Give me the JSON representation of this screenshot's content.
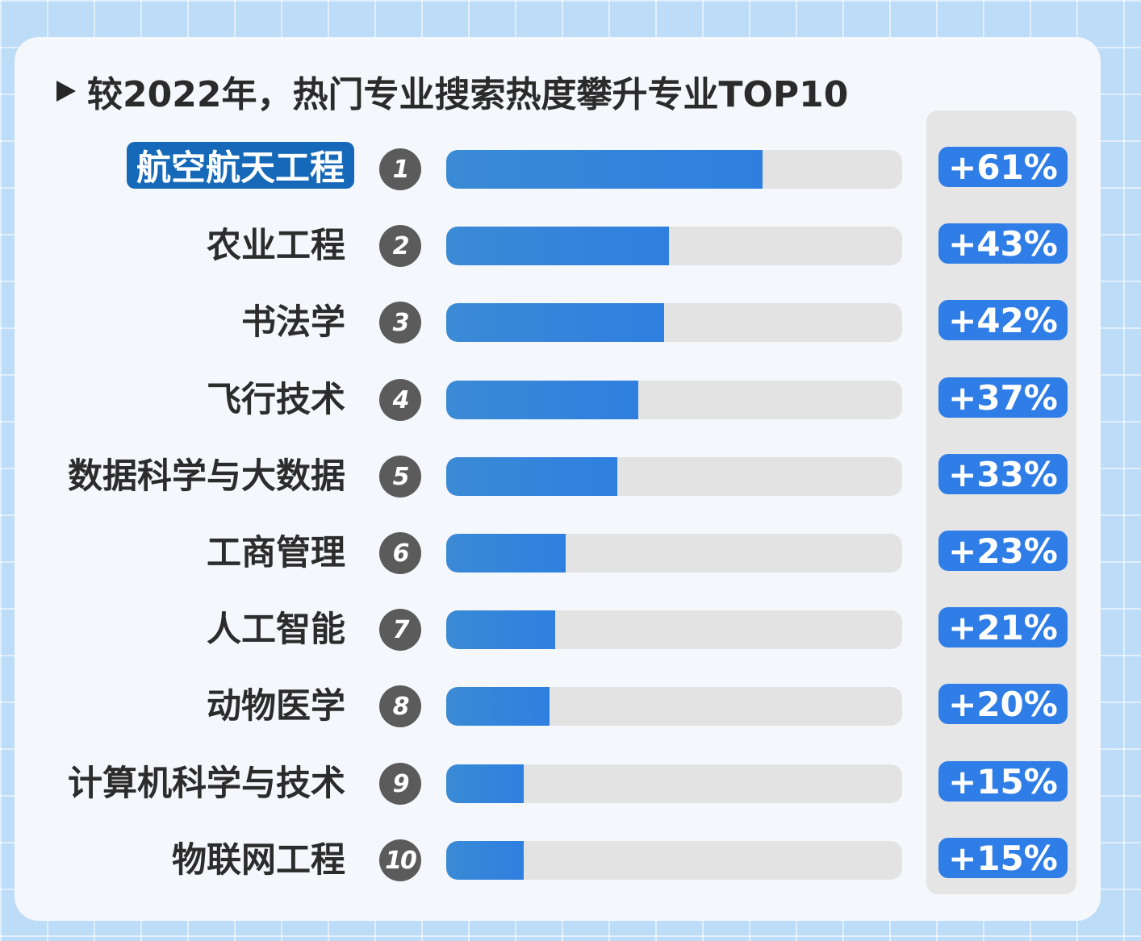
{
  "title": "较2022年，热门专业搜索热度攀升专业TOP10",
  "chart_data": {
    "type": "bar",
    "orientation": "horizontal",
    "title": "较2022年，热门专业搜索热度攀升专业TOP10",
    "categories": [
      "航空航天工程",
      "农业工程",
      "书法学",
      "飞行技术",
      "数据科学与大数据",
      "工商管理",
      "人工智能",
      "动物医学",
      "计算机科学与技术",
      "物联网工程"
    ],
    "ranks": [
      "1",
      "2",
      "3",
      "4",
      "5",
      "6",
      "7",
      "8",
      "9",
      "10"
    ],
    "values": [
      61,
      43,
      42,
      37,
      33,
      23,
      21,
      20,
      15,
      15
    ],
    "value_labels": [
      "+61%",
      "+43%",
      "+42%",
      "+37%",
      "+33%",
      "+23%",
      "+21%",
      "+20%",
      "+15%",
      "+15%"
    ],
    "xlim": [
      0,
      88
    ],
    "highlight_index": 0,
    "colors": {
      "bar": "#2f7fe0",
      "track": "#e3e3e3",
      "badge": "#2f7de6",
      "highlight": "#1669b8",
      "rank": "#5b5b5b"
    }
  }
}
